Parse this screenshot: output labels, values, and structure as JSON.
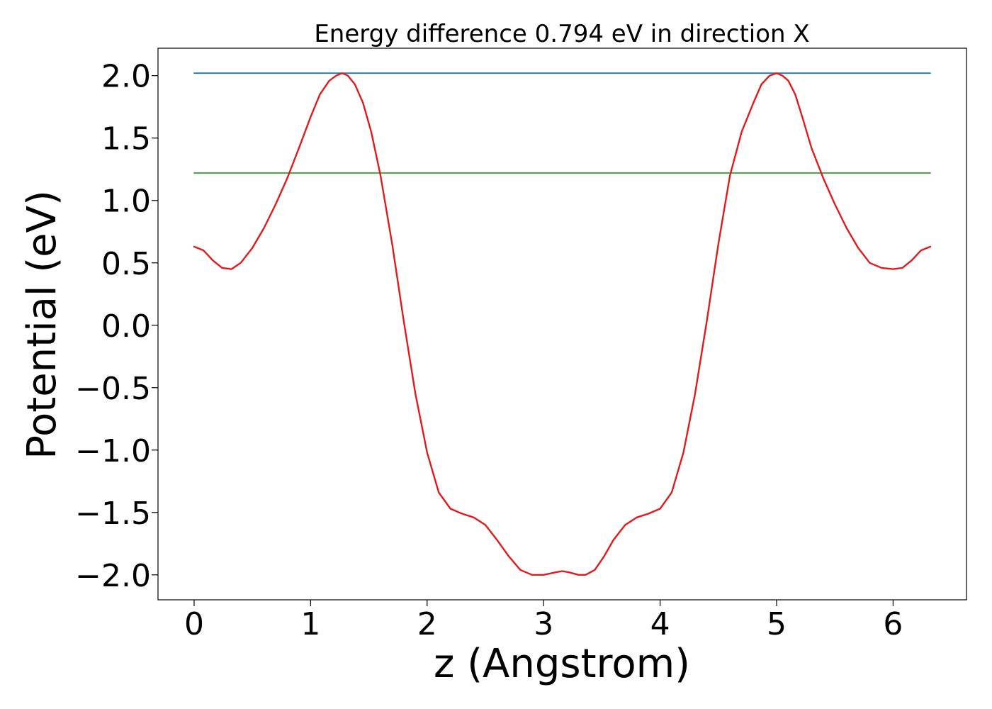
{
  "chart_data": {
    "type": "line",
    "title": "Energy difference 0.794 eV in direction X",
    "xlabel": "z (Angstrom)",
    "ylabel": "Potential (eV)",
    "xlim": [
      -0.31,
      6.63
    ],
    "ylim": [
      -2.2,
      2.22
    ],
    "xticks": [
      0,
      1,
      2,
      3,
      4,
      5,
      6
    ],
    "xtick_labels": [
      "0",
      "1",
      "2",
      "3",
      "4",
      "5",
      "6"
    ],
    "yticks": [
      2.0,
      1.5,
      1.0,
      0.5,
      0.0,
      -0.5,
      -1.0,
      -1.5,
      -2.0
    ],
    "ytick_labels": [
      "2.0",
      "1.5",
      "1.0",
      "0.5",
      "0.0",
      "−0.5",
      "−1.0",
      "−1.5",
      "−2.0"
    ],
    "grid": false,
    "series": [
      {
        "color": "#1f77b4",
        "x": [
          0.0,
          6.32
        ],
        "y": [
          2.02,
          2.02
        ]
      },
      {
        "color": "#2ca02c",
        "x": [
          0.0,
          6.32
        ],
        "y": [
          1.22,
          1.22
        ]
      },
      {
        "color": "#e31a1c",
        "x": [
          0.0,
          0.08,
          0.16,
          0.24,
          0.32,
          0.4,
          0.5,
          0.6,
          0.7,
          0.8,
          0.9,
          1.0,
          1.08,
          1.16,
          1.22,
          1.27,
          1.32,
          1.38,
          1.45,
          1.52,
          1.6,
          1.7,
          1.8,
          1.9,
          2.0,
          2.1,
          2.2,
          2.3,
          2.4,
          2.5,
          2.6,
          2.7,
          2.8,
          2.9,
          3.0,
          3.1,
          3.16,
          3.22,
          3.3,
          3.36,
          3.44,
          3.52,
          3.6,
          3.7,
          3.8,
          3.9,
          4.0,
          4.1,
          4.2,
          4.3,
          4.4,
          4.5,
          4.6,
          4.7,
          4.8,
          4.87,
          4.94,
          5.0,
          5.05,
          5.1,
          5.16,
          5.22,
          5.3,
          5.4,
          5.5,
          5.6,
          5.7,
          5.8,
          5.9,
          6.0,
          6.08,
          6.16,
          6.24,
          6.32
        ],
        "y": [
          0.63,
          0.6,
          0.52,
          0.46,
          0.45,
          0.5,
          0.62,
          0.78,
          0.97,
          1.18,
          1.42,
          1.67,
          1.85,
          1.96,
          2.0,
          2.02,
          2.0,
          1.93,
          1.78,
          1.55,
          1.2,
          0.65,
          0.03,
          -0.55,
          -1.02,
          -1.34,
          -1.47,
          -1.51,
          -1.54,
          -1.6,
          -1.72,
          -1.85,
          -1.96,
          -2.0,
          -2.0,
          -1.98,
          -1.97,
          -1.98,
          -2.0,
          -2.0,
          -1.96,
          -1.85,
          -1.72,
          -1.6,
          -1.54,
          -1.51,
          -1.47,
          -1.34,
          -1.02,
          -0.55,
          0.03,
          0.65,
          1.2,
          1.55,
          1.78,
          1.93,
          2.0,
          2.02,
          2.0,
          1.96,
          1.85,
          1.67,
          1.42,
          1.18,
          0.97,
          0.78,
          0.62,
          0.5,
          0.46,
          0.45,
          0.46,
          0.52,
          0.6,
          0.63
        ]
      }
    ]
  }
}
